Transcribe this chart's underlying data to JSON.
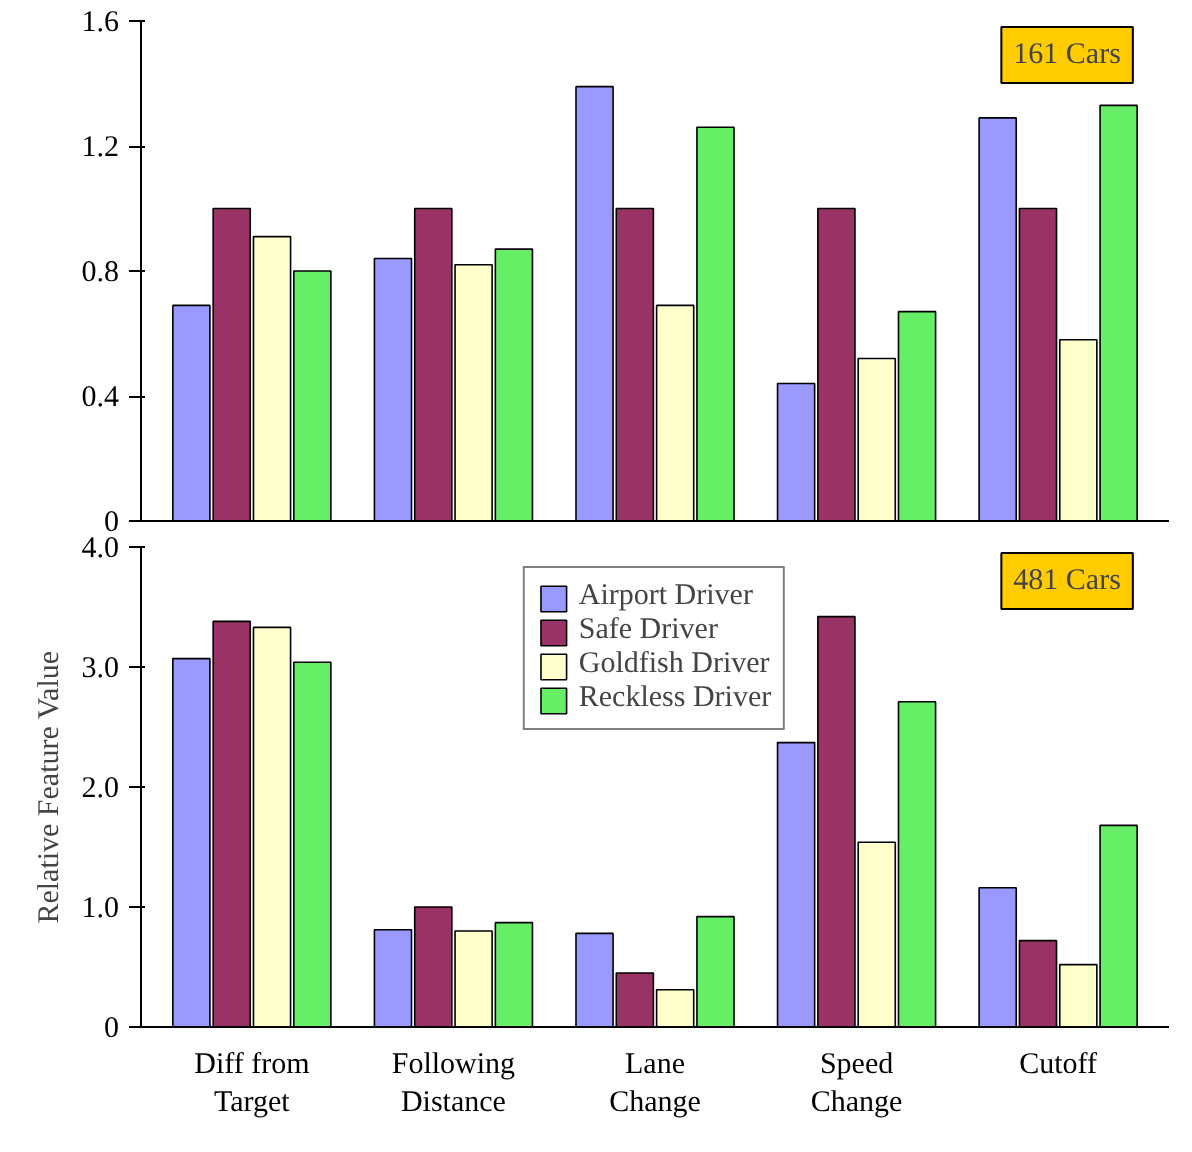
{
  "chart_data": [
    {
      "type": "bar",
      "categories": [
        null,
        null,
        null,
        null,
        null
      ],
      "tick_labels": "y",
      "legend": false,
      "grid": false,
      "ylim": [
        0,
        1.6
      ],
      "yticks": [
        {
          "value": 0,
          "label": "0"
        },
        0.4,
        0.8,
        1.2,
        1.6
      ],
      "annotations": [
        "161 Cars"
      ],
      "series": [
        {
          "color": "#9999ff",
          "values": [
            0.69,
            0.84,
            1.39,
            0.44,
            1.29
          ]
        },
        {
          "color": "#993366",
          "values": [
            1.0,
            1.0,
            1.0,
            1.0,
            1.0
          ]
        },
        {
          "color": "#ffffcc",
          "values": [
            0.91,
            0.82,
            0.69,
            0.52,
            0.58
          ]
        },
        {
          "color": "#66ee66",
          "values": [
            0.8,
            0.87,
            1.26,
            0.67,
            1.33
          ]
        }
      ]
    },
    {
      "type": "bar",
      "categories": [
        "Diff from\nTarget",
        "Following\nDistance",
        "Lane\nChange",
        "Speed\nChange",
        "Cutoff"
      ],
      "ylabel": "Relative Feature Value",
      "legend": "top",
      "grid": false,
      "ylim": [
        0,
        4.0
      ],
      "yticks": [
        {
          "value": 0,
          "label": "0"
        },
        {
          "value": 1,
          "label": "1.0"
        },
        {
          "value": 2,
          "label": "2.0"
        },
        {
          "value": 3,
          "label": "3.0"
        },
        {
          "value": 4,
          "label": "4.0"
        }
      ],
      "annotations": [
        "481 Cars"
      ],
      "series": [
        {
          "name": "Airport Driver",
          "color": "#9999ff",
          "values": [
            3.07,
            0.81,
            0.78,
            2.37,
            1.16
          ]
        },
        {
          "name": "Safe Driver",
          "color": "#993366",
          "values": [
            3.38,
            1.0,
            0.45,
            3.42,
            0.72
          ]
        },
        {
          "name": "Goldfish Driver",
          "color": "#ffffcc",
          "values": [
            3.33,
            0.8,
            0.31,
            1.54,
            0.52
          ]
        },
        {
          "name": "Reckless Driver",
          "color": "#66ee66",
          "values": [
            3.04,
            0.87,
            0.92,
            2.71,
            1.68
          ]
        }
      ]
    }
  ]
}
